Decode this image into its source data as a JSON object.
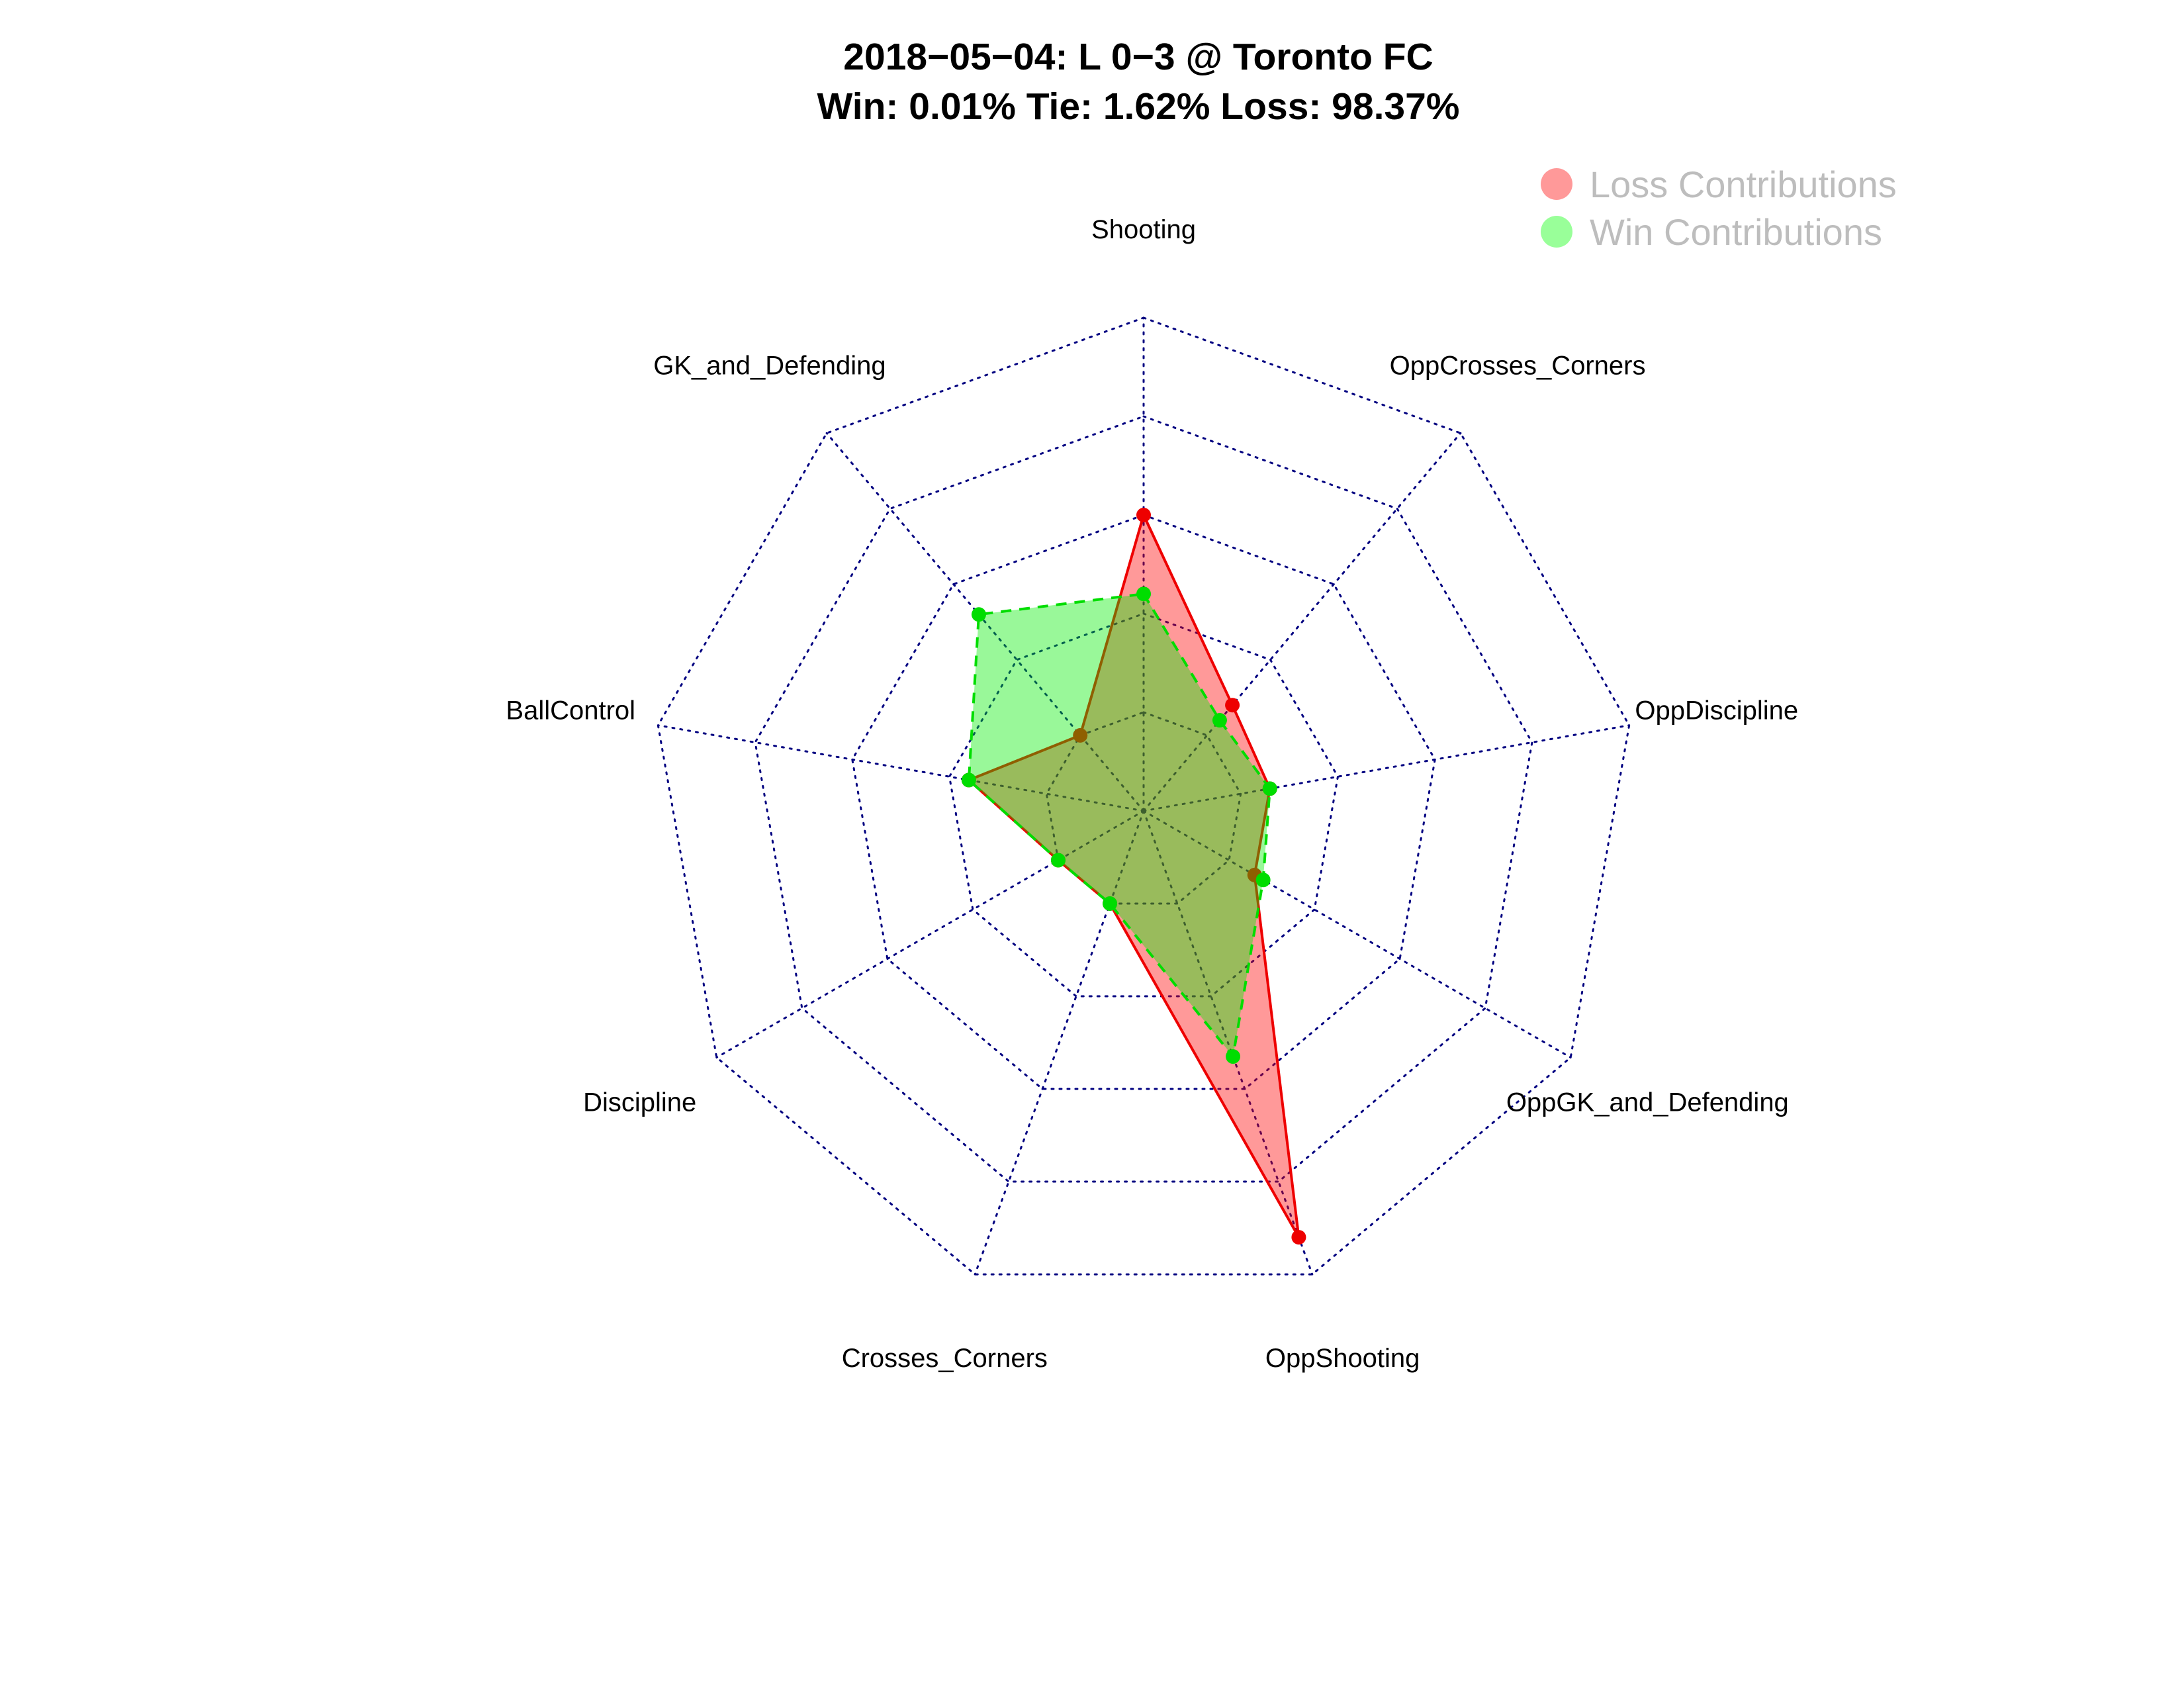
{
  "title": {
    "line1": "2018−05−04:  L 0−3   @ Toronto FC",
    "line2": "Win: 0.01% Tie: 1.62% Loss: 98.37%"
  },
  "legend": {
    "position": "top-right",
    "items": [
      {
        "label": "Loss Contributions",
        "color": "#ff9999"
      },
      {
        "label": "Win Contributions",
        "color": "#99ff99"
      }
    ]
  },
  "chart_data": {
    "type": "radar",
    "axes": [
      "Shooting",
      "OppCrosses_Corners",
      "OppDiscipline",
      "OppGK_and_Defending",
      "OppShooting",
      "Crosses_Corners",
      "Discipline",
      "BallControl",
      "GK_and_Defending"
    ],
    "range": [
      0,
      1
    ],
    "grid_levels": 5,
    "series": [
      {
        "name": "Loss Contributions",
        "line_color": "#ee0000",
        "fill_color": "#ff0000",
        "fill_opacity": 0.4,
        "dashed": false,
        "values": [
          0.6,
          0.28,
          0.26,
          0.26,
          0.92,
          0.2,
          0.2,
          0.36,
          0.2
        ]
      },
      {
        "name": "Win Contributions",
        "line_color": "#00dd00",
        "fill_color": "#00ee00",
        "fill_opacity": 0.4,
        "dashed": true,
        "values": [
          0.44,
          0.24,
          0.26,
          0.28,
          0.53,
          0.2,
          0.2,
          0.36,
          0.52
        ]
      }
    ],
    "grid": true,
    "grid_color": "#000080"
  }
}
